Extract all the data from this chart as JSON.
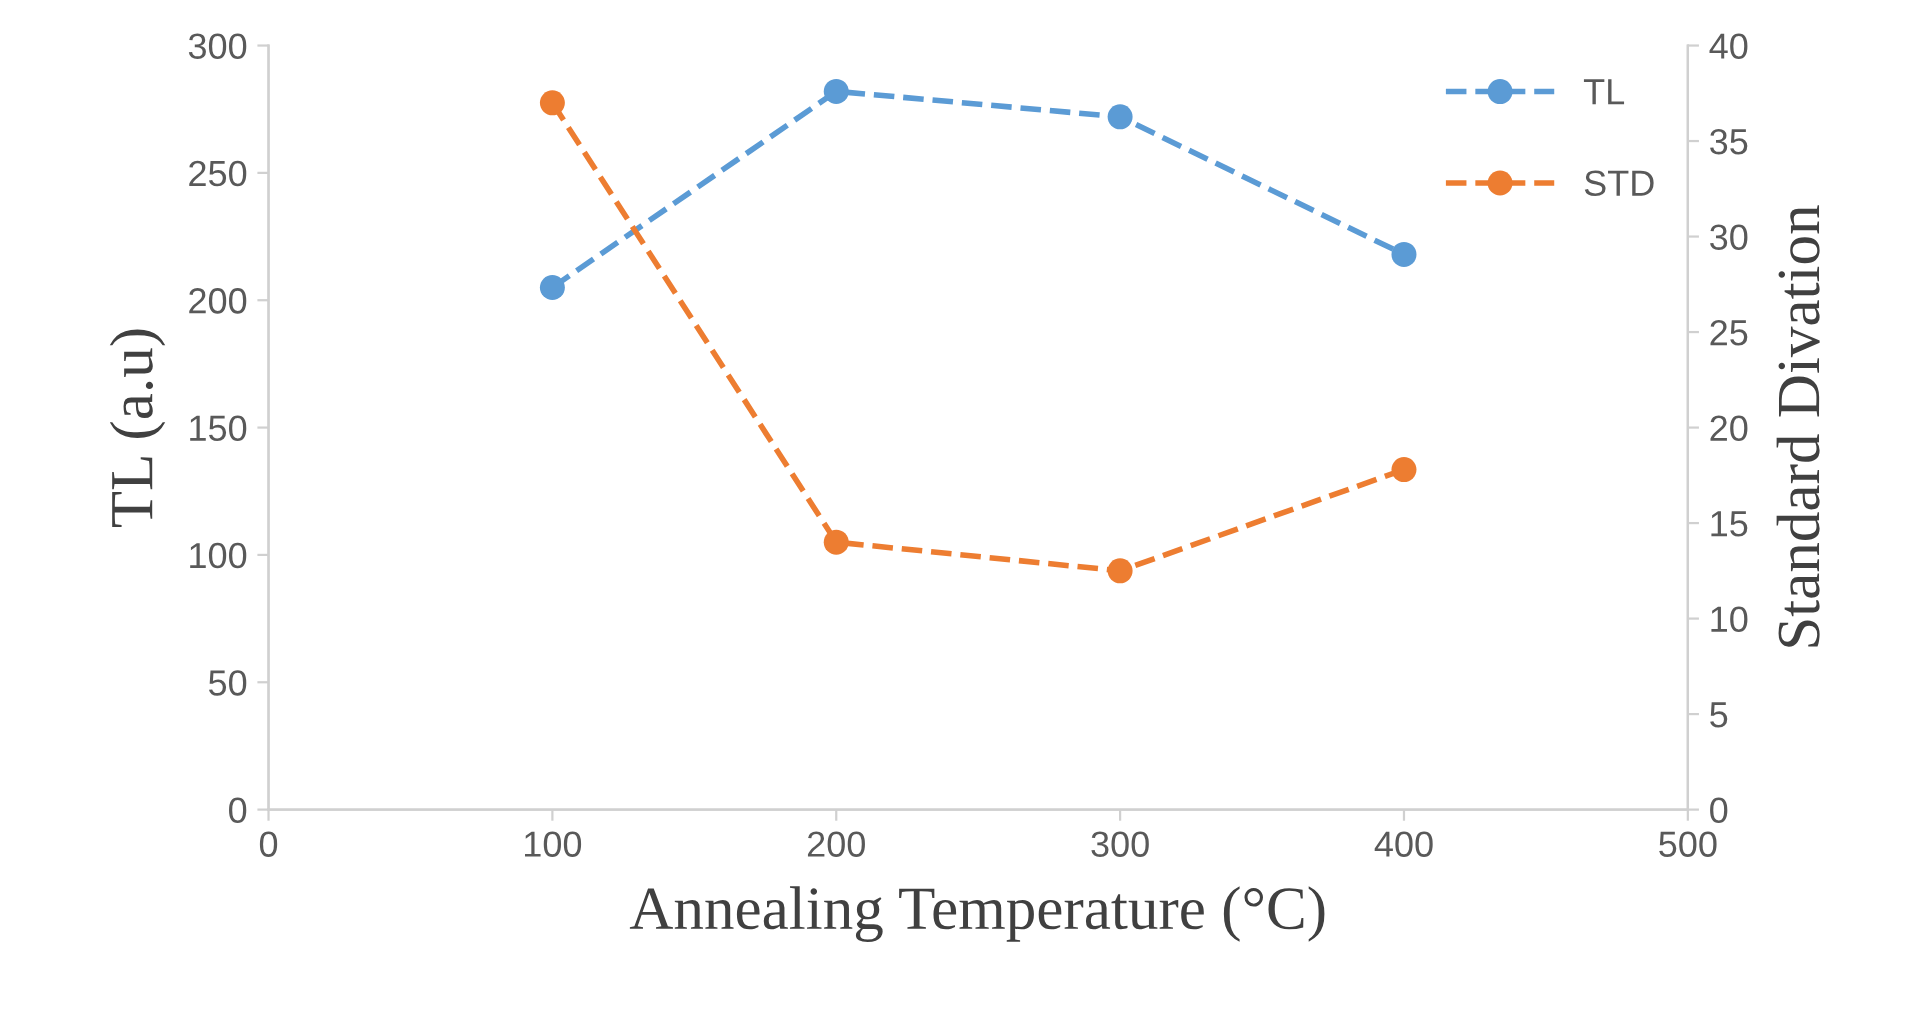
{
  "chart_data": {
    "type": "line",
    "xlabel": "Annealing Temperature (°C)",
    "ylabel": "TL (a.u)",
    "y2label": "Standard Divation",
    "x": [
      100,
      200,
      300,
      400
    ],
    "series": [
      {
        "name": "TL",
        "color": "#5b9bd5",
        "values": [
          205,
          282,
          272,
          218
        ]
      },
      {
        "name": "STD",
        "color": "#ed7d31",
        "values": [
          37.0,
          14.0,
          12.5,
          17.8
        ],
        "axis": "y2"
      }
    ],
    "xlim": [
      0,
      500
    ],
    "xticks": [
      0,
      100,
      200,
      300,
      400,
      500
    ],
    "ylim": [
      0,
      300
    ],
    "yticks": [
      0,
      50,
      100,
      150,
      200,
      250,
      300
    ],
    "y2lim": [
      0,
      40
    ],
    "y2ticks": [
      0,
      5,
      10,
      15,
      20,
      25,
      30,
      35,
      40
    ],
    "grid": false,
    "legend": "top right",
    "marker": "circle",
    "line_style": "dashed"
  }
}
